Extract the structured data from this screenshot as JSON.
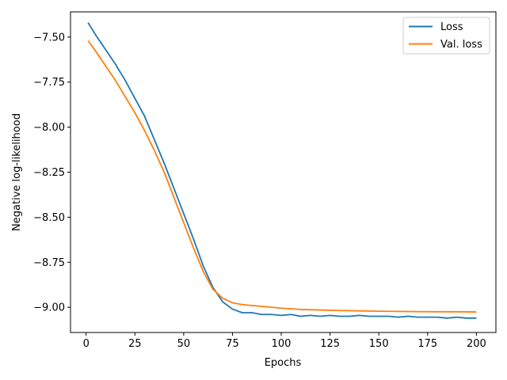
{
  "chart_data": {
    "type": "line",
    "title": "",
    "xlabel": "Epochs",
    "ylabel": "Negative log-likelihood",
    "xlim": [
      -8,
      210
    ],
    "ylim": [
      -9.14,
      -7.36
    ],
    "x_ticks": [
      0,
      25,
      50,
      75,
      100,
      125,
      150,
      175,
      200
    ],
    "x_tick_labels": [
      "0",
      "25",
      "50",
      "75",
      "100",
      "125",
      "150",
      "175",
      "200"
    ],
    "y_ticks": [
      -7.5,
      -7.75,
      -8.0,
      -8.25,
      -8.5,
      -8.75,
      -9.0
    ],
    "y_tick_labels": [
      "−7.50",
      "−7.75",
      "−8.00",
      "−8.25",
      "−8.50",
      "−8.75",
      "−9.00"
    ],
    "grid": false,
    "legend_position": "top-right",
    "series": [
      {
        "name": "Loss",
        "color": "#1f77b4",
        "x": [
          1,
          5,
          10,
          15,
          20,
          25,
          30,
          35,
          40,
          45,
          50,
          55,
          60,
          65,
          70,
          75,
          80,
          85,
          90,
          95,
          100,
          105,
          110,
          115,
          120,
          125,
          130,
          135,
          140,
          145,
          150,
          155,
          160,
          165,
          170,
          175,
          180,
          185,
          190,
          195,
          200
        ],
        "y": [
          -7.42,
          -7.49,
          -7.57,
          -7.65,
          -7.74,
          -7.84,
          -7.94,
          -8.07,
          -8.2,
          -8.34,
          -8.48,
          -8.62,
          -8.77,
          -8.89,
          -8.97,
          -9.01,
          -9.03,
          -9.03,
          -9.04,
          -9.04,
          -9.045,
          -9.04,
          -9.05,
          -9.045,
          -9.05,
          -9.045,
          -9.05,
          -9.05,
          -9.045,
          -9.05,
          -9.05,
          -9.05,
          -9.055,
          -9.05,
          -9.055,
          -9.055,
          -9.055,
          -9.06,
          -9.055,
          -9.06,
          -9.06
        ]
      },
      {
        "name": "Val. loss",
        "color": "#ff7f0e",
        "x": [
          1,
          5,
          10,
          15,
          20,
          25,
          30,
          35,
          40,
          45,
          50,
          55,
          60,
          65,
          70,
          75,
          80,
          85,
          90,
          95,
          100,
          110,
          120,
          130,
          140,
          150,
          160,
          170,
          180,
          190,
          200
        ],
        "y": [
          -7.52,
          -7.58,
          -7.66,
          -7.74,
          -7.83,
          -7.92,
          -8.02,
          -8.13,
          -8.25,
          -8.39,
          -8.53,
          -8.67,
          -8.8,
          -8.9,
          -8.95,
          -8.975,
          -8.985,
          -8.99,
          -8.995,
          -9.0,
          -9.005,
          -9.012,
          -9.015,
          -9.018,
          -9.02,
          -9.022,
          -9.023,
          -9.024,
          -9.025,
          -9.025,
          -9.026
        ]
      }
    ]
  }
}
